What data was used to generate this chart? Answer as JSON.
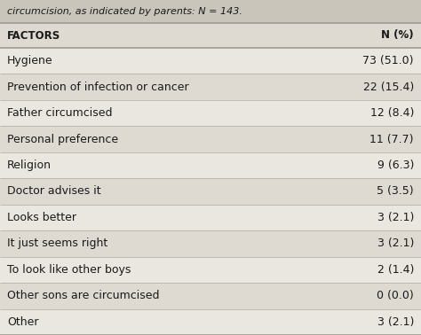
{
  "title_line": "circumcision, as indicated by parents: N = 143.",
  "col1_header": "FACTORS",
  "col2_header": "N (%)",
  "rows": [
    [
      "Hygiene",
      "73 (51.0)"
    ],
    [
      "Prevention of infection or cancer",
      "22 (15.4)"
    ],
    [
      "Father circumcised",
      "12 (8.4)"
    ],
    [
      "Personal preference",
      "11 (7.7)"
    ],
    [
      "Religion",
      "9 (6.3)"
    ],
    [
      "Doctor advises it",
      "5 (3.5)"
    ],
    [
      "Looks better",
      "3 (2.1)"
    ],
    [
      "It just seems right",
      "3 (2.1)"
    ],
    [
      "To look like other boys",
      "2 (1.4)"
    ],
    [
      "Other sons are circumcised",
      "0 (0.0)"
    ],
    [
      "Other",
      "3 (2.1)"
    ]
  ],
  "title_bg": "#cac5bb",
  "header_bg": "#dedad2",
  "row_bg_odd": "#eae7e0",
  "row_bg_even": "#dedad2",
  "text_color": "#1a1a1a",
  "header_text_color": "#1a1a1a",
  "fig_bg": "#eae7e0",
  "divider_color": "#a09b92",
  "font_size": 9.0,
  "header_font_size": 8.5,
  "title_font_size": 8.0
}
